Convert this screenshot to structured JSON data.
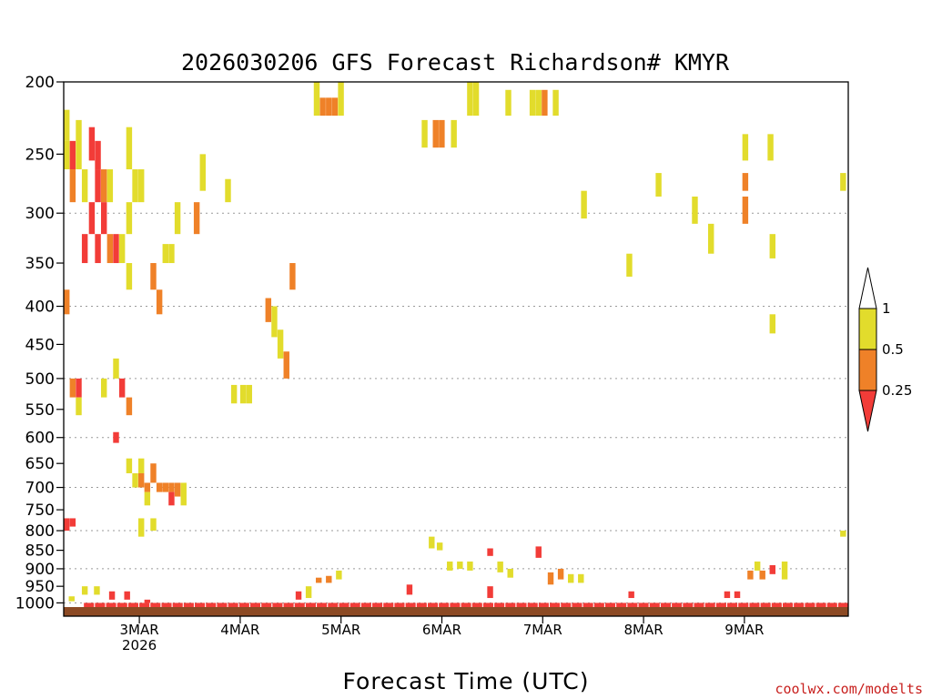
{
  "chart_data": {
    "type": "heatmap",
    "title": "2026030206 GFS Forecast Richardson# KMYR",
    "xlabel": "Forecast Time (UTC)",
    "ylabel": "",
    "credit": "coolwx.com/modelts",
    "x_axis": {
      "units": "days since 02 Mar 2026 06 UTC",
      "range": [
        0,
        7.78
      ],
      "ticks": [
        {
          "label": "3MAR",
          "sublabel": "2026",
          "value": 0.75
        },
        {
          "label": "4MAR",
          "value": 1.75
        },
        {
          "label": "5MAR",
          "value": 2.75
        },
        {
          "label": "6MAR",
          "value": 3.75
        },
        {
          "label": "7MAR",
          "value": 4.75
        },
        {
          "label": "8MAR",
          "value": 5.75
        },
        {
          "label": "9MAR",
          "value": 6.75
        }
      ]
    },
    "y_axis": {
      "units": "hPa",
      "range": [
        200,
        1013
      ],
      "ticks": [
        "200",
        "250",
        "300",
        "350",
        "400",
        "450",
        "500",
        "550",
        "600",
        "650",
        "700",
        "750",
        "800",
        "850",
        "900",
        "950",
        "1000"
      ]
    },
    "gridlines": [
      300,
      400,
      500,
      600,
      700,
      800,
      900,
      1000
    ],
    "legend": {
      "placement": "right",
      "items": [
        {
          "label": "1",
          "meaning": "Ri > 1",
          "color": "#ffffff"
        },
        {
          "label": "0.5",
          "meaning": "0.5 - 1",
          "color": "#e2dc2c"
        },
        {
          "label": "0.25",
          "meaning": "0.25 - 0.5",
          "color": "#ef8128"
        },
        {
          "label": "",
          "meaning": "< 0.25",
          "color": "#f23c38"
        }
      ]
    },
    "colors": {
      "low": "#f23c38",
      "mid": "#ef8128",
      "high": "#e2dc2c",
      "ground": "#8c4a24"
    },
    "cells": [
      {
        "t": 0.0,
        "p1": 218,
        "p2": 240,
        "c": "high"
      },
      {
        "t": 0.0,
        "p1": 240,
        "p2": 262,
        "c": "high"
      },
      {
        "t": 0.06,
        "p1": 240,
        "p2": 262,
        "c": "low"
      },
      {
        "t": 0.12,
        "p1": 225,
        "p2": 262,
        "c": "high"
      },
      {
        "t": 0.06,
        "p1": 262,
        "p2": 290,
        "c": "mid"
      },
      {
        "t": 0.18,
        "p1": 262,
        "p2": 290,
        "c": "high"
      },
      {
        "t": 0.25,
        "p1": 230,
        "p2": 255,
        "c": "low"
      },
      {
        "t": 0.31,
        "p1": 240,
        "p2": 262,
        "c": "low"
      },
      {
        "t": 0.31,
        "p1": 262,
        "p2": 290,
        "c": "low"
      },
      {
        "t": 0.37,
        "p1": 262,
        "p2": 290,
        "c": "mid"
      },
      {
        "t": 0.43,
        "p1": 262,
        "p2": 290,
        "c": "high"
      },
      {
        "t": 0.25,
        "p1": 290,
        "p2": 320,
        "c": "low"
      },
      {
        "t": 0.37,
        "p1": 290,
        "p2": 320,
        "c": "low"
      },
      {
        "t": 0.18,
        "p1": 320,
        "p2": 350,
        "c": "low"
      },
      {
        "t": 0.31,
        "p1": 320,
        "p2": 350,
        "c": "low"
      },
      {
        "t": 0.43,
        "p1": 320,
        "p2": 350,
        "c": "mid"
      },
      {
        "t": 0.49,
        "p1": 320,
        "p2": 350,
        "c": "low"
      },
      {
        "t": 0.55,
        "p1": 320,
        "p2": 350,
        "c": "high"
      },
      {
        "t": 0.62,
        "p1": 290,
        "p2": 320,
        "c": "high"
      },
      {
        "t": 0.62,
        "p1": 230,
        "p2": 262,
        "c": "high"
      },
      {
        "t": 0.68,
        "p1": 262,
        "p2": 290,
        "c": "high"
      },
      {
        "t": 0.74,
        "p1": 262,
        "p2": 290,
        "c": "high"
      },
      {
        "t": 0.62,
        "p1": 350,
        "p2": 380,
        "c": "high"
      },
      {
        "t": 0.86,
        "p1": 350,
        "p2": 380,
        "c": "mid"
      },
      {
        "t": 0.92,
        "p1": 380,
        "p2": 410,
        "c": "mid"
      },
      {
        "t": 0.0,
        "p1": 380,
        "p2": 410,
        "c": "mid"
      },
      {
        "t": 0.06,
        "p1": 500,
        "p2": 530,
        "c": "mid"
      },
      {
        "t": 0.12,
        "p1": 500,
        "p2": 530,
        "c": "low"
      },
      {
        "t": 0.12,
        "p1": 530,
        "p2": 560,
        "c": "high"
      },
      {
        "t": 0.37,
        "p1": 500,
        "p2": 530,
        "c": "high"
      },
      {
        "t": 0.49,
        "p1": 470,
        "p2": 500,
        "c": "high"
      },
      {
        "t": 0.55,
        "p1": 500,
        "p2": 530,
        "c": "low"
      },
      {
        "t": 0.62,
        "p1": 530,
        "p2": 560,
        "c": "mid"
      },
      {
        "t": 0.49,
        "p1": 590,
        "p2": 610,
        "c": "low"
      },
      {
        "t": 0.62,
        "p1": 640,
        "p2": 670,
        "c": "high"
      },
      {
        "t": 0.74,
        "p1": 640,
        "p2": 670,
        "c": "high"
      },
      {
        "t": 0.68,
        "p1": 670,
        "p2": 700,
        "c": "high"
      },
      {
        "t": 0.74,
        "p1": 670,
        "p2": 700,
        "c": "mid"
      },
      {
        "t": 0.86,
        "p1": 650,
        "p2": 690,
        "c": "mid"
      },
      {
        "t": 0.8,
        "p1": 690,
        "p2": 710,
        "c": "mid"
      },
      {
        "t": 0.92,
        "p1": 690,
        "p2": 710,
        "c": "mid"
      },
      {
        "t": 0.98,
        "p1": 690,
        "p2": 710,
        "c": "mid"
      },
      {
        "t": 1.04,
        "p1": 690,
        "p2": 710,
        "c": "mid"
      },
      {
        "t": 1.1,
        "p1": 690,
        "p2": 720,
        "c": "mid"
      },
      {
        "t": 1.16,
        "p1": 690,
        "p2": 740,
        "c": "high"
      },
      {
        "t": 1.04,
        "p1": 710,
        "p2": 740,
        "c": "low"
      },
      {
        "t": 0.8,
        "p1": 710,
        "p2": 740,
        "c": "high"
      },
      {
        "t": 0.0,
        "p1": 770,
        "p2": 800,
        "c": "low"
      },
      {
        "t": 0.06,
        "p1": 770,
        "p2": 790,
        "c": "low"
      },
      {
        "t": 0.74,
        "p1": 770,
        "p2": 815,
        "c": "high"
      },
      {
        "t": 0.86,
        "p1": 770,
        "p2": 800,
        "c": "high"
      },
      {
        "t": 0.98,
        "p1": 330,
        "p2": 350,
        "c": "high"
      },
      {
        "t": 1.04,
        "p1": 330,
        "p2": 350,
        "c": "high"
      },
      {
        "t": 1.1,
        "p1": 290,
        "p2": 320,
        "c": "high"
      },
      {
        "t": 1.29,
        "p1": 290,
        "p2": 320,
        "c": "mid"
      },
      {
        "t": 1.35,
        "p1": 250,
        "p2": 280,
        "c": "high"
      },
      {
        "t": 1.6,
        "p1": 270,
        "p2": 290,
        "c": "high"
      },
      {
        "t": 1.75,
        "p1": 510,
        "p2": 540,
        "c": "high"
      },
      {
        "t": 1.81,
        "p1": 510,
        "p2": 540,
        "c": "high"
      },
      {
        "t": 1.66,
        "p1": 510,
        "p2": 540,
        "c": "high"
      },
      {
        "t": 2.0,
        "p1": 390,
        "p2": 420,
        "c": "mid"
      },
      {
        "t": 2.06,
        "p1": 400,
        "p2": 440,
        "c": "high"
      },
      {
        "t": 2.12,
        "p1": 430,
        "p2": 470,
        "c": "high"
      },
      {
        "t": 2.18,
        "p1": 460,
        "p2": 500,
        "c": "mid"
      },
      {
        "t": 2.24,
        "p1": 350,
        "p2": 380,
        "c": "mid"
      },
      {
        "t": 2.54,
        "p1": 210,
        "p2": 222,
        "c": "mid"
      },
      {
        "t": 2.6,
        "p1": 210,
        "p2": 222,
        "c": "mid"
      },
      {
        "t": 2.66,
        "p1": 210,
        "p2": 222,
        "c": "mid"
      },
      {
        "t": 2.48,
        "p1": 200,
        "p2": 222,
        "c": "high"
      },
      {
        "t": 2.72,
        "p1": 200,
        "p2": 222,
        "c": "high"
      },
      {
        "t": 3.55,
        "p1": 225,
        "p2": 245,
        "c": "high"
      },
      {
        "t": 3.66,
        "p1": 225,
        "p2": 245,
        "c": "mid"
      },
      {
        "t": 3.72,
        "p1": 225,
        "p2": 245,
        "c": "mid"
      },
      {
        "t": 3.84,
        "p1": 225,
        "p2": 245,
        "c": "high"
      },
      {
        "t": 4.0,
        "p1": 200,
        "p2": 222,
        "c": "high"
      },
      {
        "t": 4.06,
        "p1": 200,
        "p2": 222,
        "c": "high"
      },
      {
        "t": 4.38,
        "p1": 205,
        "p2": 222,
        "c": "high"
      },
      {
        "t": 4.62,
        "p1": 205,
        "p2": 222,
        "c": "high"
      },
      {
        "t": 4.68,
        "p1": 205,
        "p2": 222,
        "c": "high"
      },
      {
        "t": 4.74,
        "p1": 205,
        "p2": 222,
        "c": "mid"
      },
      {
        "t": 4.85,
        "p1": 205,
        "p2": 222,
        "c": "high"
      },
      {
        "t": 5.13,
        "p1": 280,
        "p2": 305,
        "c": "high"
      },
      {
        "t": 5.58,
        "p1": 340,
        "p2": 365,
        "c": "high"
      },
      {
        "t": 5.87,
        "p1": 265,
        "p2": 285,
        "c": "high"
      },
      {
        "t": 6.23,
        "p1": 285,
        "p2": 310,
        "c": "high"
      },
      {
        "t": 6.39,
        "p1": 310,
        "p2": 340,
        "c": "high"
      },
      {
        "t": 6.73,
        "p1": 235,
        "p2": 255,
        "c": "high"
      },
      {
        "t": 6.73,
        "p1": 265,
        "p2": 280,
        "c": "mid"
      },
      {
        "t": 6.73,
        "p1": 285,
        "p2": 310,
        "c": "mid"
      },
      {
        "t": 6.98,
        "p1": 235,
        "p2": 255,
        "c": "high"
      },
      {
        "t": 7.0,
        "p1": 320,
        "p2": 345,
        "c": "high"
      },
      {
        "t": 7.0,
        "p1": 410,
        "p2": 435,
        "c": "high"
      },
      {
        "t": 7.7,
        "p1": 265,
        "p2": 280,
        "c": "high"
      },
      {
        "t": 7.7,
        "p1": 800,
        "p2": 815,
        "c": "high"
      },
      {
        "t": 3.62,
        "p1": 815,
        "p2": 845,
        "c": "high"
      },
      {
        "t": 3.7,
        "p1": 830,
        "p2": 850,
        "c": "high"
      },
      {
        "t": 3.8,
        "p1": 880,
        "p2": 905,
        "c": "high"
      },
      {
        "t": 3.9,
        "p1": 880,
        "p2": 900,
        "c": "high"
      },
      {
        "t": 4.0,
        "p1": 880,
        "p2": 905,
        "c": "high"
      },
      {
        "t": 4.2,
        "p1": 845,
        "p2": 865,
        "c": "low"
      },
      {
        "t": 4.3,
        "p1": 880,
        "p2": 910,
        "c": "high"
      },
      {
        "t": 4.4,
        "p1": 900,
        "p2": 925,
        "c": "high"
      },
      {
        "t": 4.68,
        "p1": 840,
        "p2": 870,
        "c": "low"
      },
      {
        "t": 4.8,
        "p1": 910,
        "p2": 945,
        "c": "mid"
      },
      {
        "t": 4.9,
        "p1": 900,
        "p2": 930,
        "c": "mid"
      },
      {
        "t": 5.0,
        "p1": 915,
        "p2": 940,
        "c": "high"
      },
      {
        "t": 5.1,
        "p1": 915,
        "p2": 940,
        "c": "high"
      },
      {
        "t": 2.7,
        "p1": 905,
        "p2": 930,
        "c": "high"
      },
      {
        "t": 2.6,
        "p1": 920,
        "p2": 940,
        "c": "mid"
      },
      {
        "t": 2.5,
        "p1": 925,
        "p2": 940,
        "c": "mid"
      },
      {
        "t": 6.78,
        "p1": 905,
        "p2": 930,
        "c": "mid"
      },
      {
        "t": 6.9,
        "p1": 905,
        "p2": 930,
        "c": "mid"
      },
      {
        "t": 6.85,
        "p1": 880,
        "p2": 905,
        "c": "high"
      },
      {
        "t": 7.0,
        "p1": 890,
        "p2": 915,
        "c": "low"
      },
      {
        "t": 7.12,
        "p1": 880,
        "p2": 930,
        "c": "high"
      },
      {
        "t": 6.55,
        "p1": 965,
        "p2": 985,
        "c": "low"
      },
      {
        "t": 6.65,
        "p1": 965,
        "p2": 985,
        "c": "low"
      },
      {
        "t": 5.6,
        "p1": 965,
        "p2": 985,
        "c": "low"
      },
      {
        "t": 3.4,
        "p1": 945,
        "p2": 975,
        "c": "low"
      },
      {
        "t": 4.2,
        "p1": 950,
        "p2": 985,
        "c": "low"
      },
      {
        "t": 0.18,
        "p1": 950,
        "p2": 975,
        "c": "high"
      },
      {
        "t": 0.3,
        "p1": 950,
        "p2": 975,
        "c": "high"
      },
      {
        "t": 0.45,
        "p1": 965,
        "p2": 990,
        "c": "low"
      },
      {
        "t": 0.6,
        "p1": 965,
        "p2": 990,
        "c": "low"
      },
      {
        "t": 0.8,
        "p1": 990,
        "p2": 1000,
        "c": "low"
      },
      {
        "t": 0.05,
        "p1": 980,
        "p2": 995,
        "c": "high"
      },
      {
        "t": 2.4,
        "p1": 950,
        "p2": 985,
        "c": "high"
      },
      {
        "t": 2.3,
        "p1": 965,
        "p2": 990,
        "c": "low"
      }
    ]
  }
}
